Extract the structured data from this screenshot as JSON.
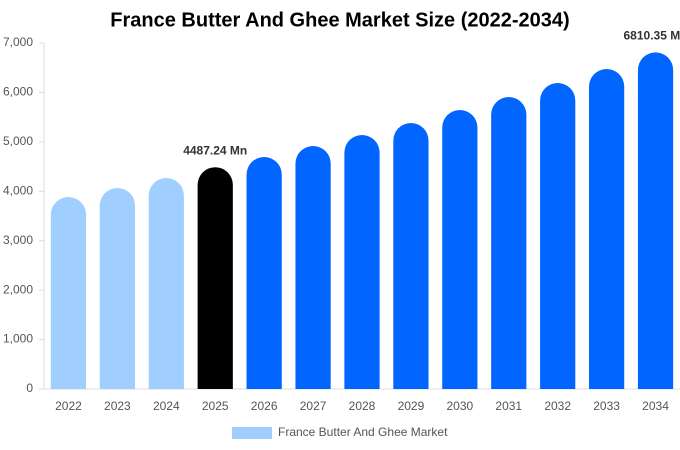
{
  "chart_data": {
    "type": "bar",
    "title": "France Butter And Ghee Market Size (2022-2034)",
    "categories": [
      "2022",
      "2023",
      "2024",
      "2025",
      "2026",
      "2027",
      "2028",
      "2029",
      "2030",
      "2031",
      "2032",
      "2033",
      "2034"
    ],
    "series": [
      {
        "name": "France Butter And Ghee Market",
        "color": "#a0cfff",
        "values": [
          3884,
          4066,
          4269,
          4487.24,
          4694,
          4916,
          5139,
          5381,
          5644,
          5907,
          6191,
          6474,
          6810.35
        ],
        "value_labels": [
          null,
          null,
          null,
          "4487.24 Mn",
          null,
          null,
          null,
          null,
          null,
          null,
          null,
          null,
          "6810.35 Mn"
        ],
        "colors": [
          "#a0cfff",
          "#a0cfff",
          "#a0cfff",
          "#000000",
          "#0066ff",
          "#0066ff",
          "#0066ff",
          "#0066ff",
          "#0066ff",
          "#0066ff",
          "#0066ff",
          "#0066ff",
          "#0066ff"
        ]
      }
    ],
    "ylim": [
      0,
      7000
    ],
    "yticks": [
      0,
      {
        "value": 1000,
        "label": "1,000"
      },
      {
        "value": 2000,
        "label": "2,000"
      },
      {
        "value": 3000,
        "label": "3,000"
      },
      {
        "value": 4000,
        "label": "4,000"
      },
      {
        "value": 5000,
        "label": "5,000"
      },
      {
        "value": 6000,
        "label": "6,000"
      },
      {
        "value": 7000,
        "label": "7,000"
      }
    ],
    "grid": false,
    "legend": "bottom"
  }
}
